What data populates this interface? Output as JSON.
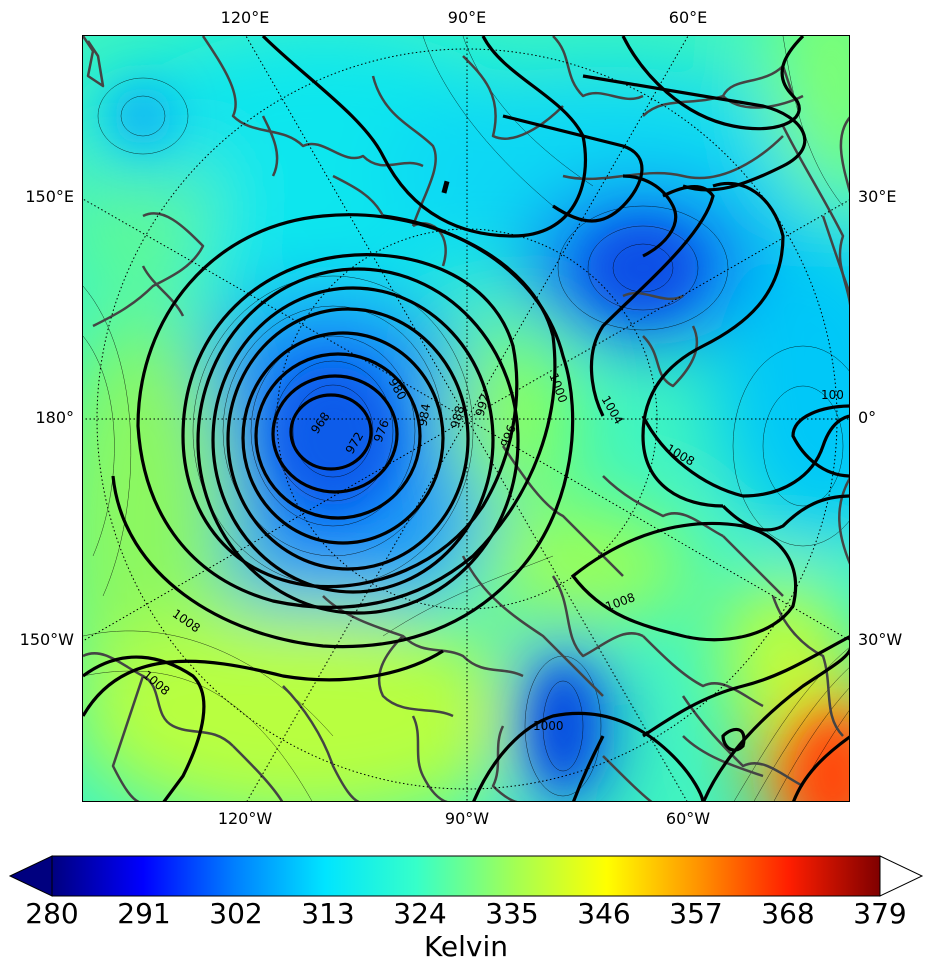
{
  "map": {
    "top_lon_labels": [
      "120°E",
      "90°E",
      "60°E"
    ],
    "bottom_lon_labels": [
      "120°W",
      "90°W",
      "60°W"
    ],
    "left_labels": [
      "150°E",
      "180°",
      "150°W"
    ],
    "right_labels": [
      "30°E",
      "0°",
      "30°W"
    ],
    "contour_labels": [
      "968",
      "972",
      "976",
      "980",
      "984",
      "988",
      "992",
      "996",
      "1000",
      "1004",
      "1008",
      "1008",
      "1008",
      "1000",
      "1008",
      "100"
    ]
  },
  "colorbar": {
    "ticks": [
      "280",
      "291",
      "302",
      "313",
      "324",
      "335",
      "346",
      "357",
      "368",
      "379"
    ],
    "title": "Kelvin",
    "colors": [
      "#00007f",
      "#0000ff",
      "#007fff",
      "#00e5ff",
      "#36ffc9",
      "#a4ff53",
      "#ffff00",
      "#ff9400",
      "#ff1e00",
      "#7f0000"
    ]
  }
}
